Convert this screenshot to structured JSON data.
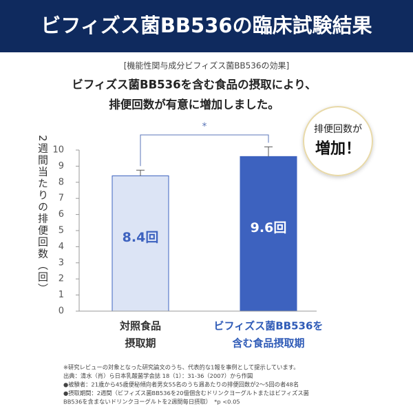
{
  "header": {
    "title": "ビフィズス菌BB536の臨床試験結果"
  },
  "chart_data": {
    "type": "bar",
    "caption": "[機能性関与成分ビフィズス菌BB536の効果]",
    "subtitle": [
      "ビフィズス菌BB536を含む食品の摂取により、",
      "排便回数が有意に増加しました。"
    ],
    "y_label": "2週間当たりの排便回数（回）",
    "categories": [
      [
        "対照食品",
        "摂取期"
      ],
      [
        "ビフィズス菌BB536を",
        "含む食品摂取期"
      ]
    ],
    "values": [
      8.4,
      9.6
    ],
    "value_labels": [
      "8.4回",
      "9.6回"
    ],
    "errors": [
      0.35,
      0.6
    ],
    "colors": [
      "#dce4f5",
      "#3d62bf"
    ],
    "label_colors": [
      "#333333",
      "#2f5bb7"
    ],
    "ylim": [
      0,
      10
    ],
    "yticks": [
      0,
      1,
      2,
      3,
      4,
      5,
      6,
      7,
      8,
      9,
      10
    ],
    "significance": "*",
    "badge": [
      "排便回数が",
      "増加！"
    ],
    "notes": [
      "※研究レビューの対象となった研究論文のうち、代表的な1報を事例として提示しています。",
      "出典：清水（肖）ら日本乳酸菌学会誌 18（1）：31-36（2007）から作図",
      "●被験者：21歳から45歳便秘傾向者男女55名のうち週あたりの排便回数が2～5回の者48名",
      "●摂取期間：2週間（ビフィズス菌BB536を20億個含むドリンクヨーグルトまたはビフィズス菌",
      "BB536を含まないドリンクヨーグルトを2週間毎日摂取）　*p <0.05"
    ]
  }
}
